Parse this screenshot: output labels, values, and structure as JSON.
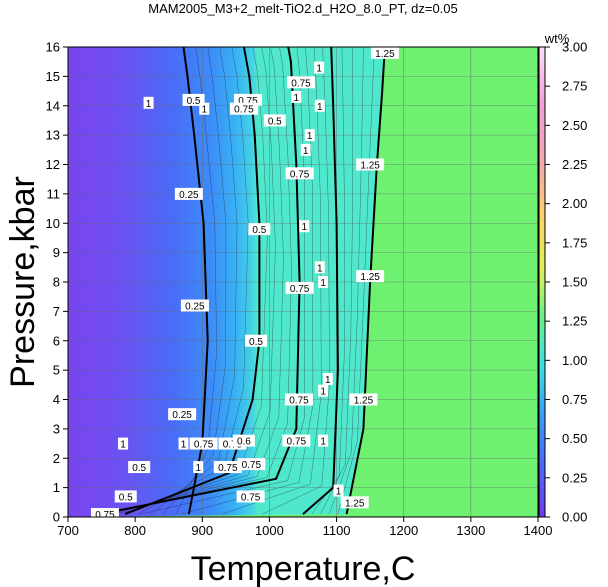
{
  "chart_data": {
    "type": "heatmap",
    "title": "MAM2005_M3+2_melt-TiO2.d_H2O_8.0_PT, dz=0.05",
    "xlabel": "Temperature,C",
    "ylabel": "Pressure,kbar",
    "xlim": [
      700,
      1400
    ],
    "ylim": [
      0,
      16
    ],
    "x_ticks": [
      "700",
      "800",
      "900",
      "1000",
      "1100",
      "1200",
      "1300",
      "1400"
    ],
    "y_ticks": [
      "0",
      "1",
      "2",
      "3",
      "4",
      "5",
      "6",
      "7",
      "8",
      "9",
      "10",
      "11",
      "12",
      "13",
      "14",
      "15",
      "16"
    ],
    "grid": true,
    "colorbar": {
      "label": "wt%",
      "range": [
        0,
        3
      ],
      "ticks": [
        "0.00",
        "0.25",
        "0.50",
        "0.75",
        "1.00",
        "1.25",
        "1.50",
        "1.75",
        "2.00",
        "2.25",
        "2.50",
        "2.75",
        "3.00"
      ],
      "colors": [
        "#6a3cf0",
        "#4a6cf6",
        "#3ca0f8",
        "#44e0dc",
        "#6ef080",
        "#d8f060",
        "#f8d860",
        "#f6a8a8",
        "#f2a0d8",
        "#f8e0f8"
      ]
    },
    "contours": [
      {
        "level": "0.25",
        "points": [
          [
            880,
            0.1
          ],
          [
            900,
            2.5
          ],
          [
            908,
            6
          ],
          [
            902,
            10
          ],
          [
            888,
            13
          ],
          [
            878,
            15
          ],
          [
            872,
            16
          ]
        ]
      },
      {
        "level": "0.5",
        "points": [
          [
            785,
            0.1
          ],
          [
            940,
            1.5
          ],
          [
            975,
            4
          ],
          [
            985,
            6
          ],
          [
            985,
            10
          ],
          [
            978,
            13
          ],
          [
            970,
            15
          ],
          [
            962,
            16
          ]
        ]
      },
      {
        "level": "0.75",
        "points": [
          [
            748,
            0.1
          ],
          [
            1010,
            1.3
          ],
          [
            1040,
            3
          ],
          [
            1045,
            8
          ],
          [
            1040,
            12
          ],
          [
            1032,
            15.5
          ],
          [
            1028,
            16
          ]
        ]
      },
      {
        "level": "1",
        "points": [
          [
            1050,
            0.1
          ],
          [
            1095,
            1
          ],
          [
            1102,
            5
          ],
          [
            1100,
            10
          ],
          [
            1095,
            14
          ],
          [
            1092,
            16
          ]
        ]
      },
      {
        "level": "1.25",
        "points": [
          [
            1115,
            0.1
          ],
          [
            1140,
            3
          ],
          [
            1150,
            8
          ],
          [
            1160,
            12
          ],
          [
            1168,
            14.5
          ],
          [
            1172,
            16
          ]
        ]
      }
    ],
    "label_marks": [
      {
        "text": "1",
        "x": 820,
        "y": 14.1
      },
      {
        "text": "0.5",
        "x": 887,
        "y": 14.2
      },
      {
        "text": "1",
        "x": 903,
        "y": 13.9
      },
      {
        "text": "0.75",
        "x": 968,
        "y": 14.2
      },
      {
        "text": "0.75",
        "x": 962,
        "y": 13.9
      },
      {
        "text": "1",
        "x": 1040,
        "y": 14.3
      },
      {
        "text": "1",
        "x": 1075,
        "y": 14.0
      },
      {
        "text": "0.75",
        "x": 1047,
        "y": 14.8
      },
      {
        "text": "1",
        "x": 1074,
        "y": 15.3
      },
      {
        "text": "1.25",
        "x": 1172,
        "y": 15.8
      },
      {
        "text": "1",
        "x": 1060,
        "y": 13.0
      },
      {
        "text": "1",
        "x": 1054,
        "y": 12.5
      },
      {
        "text": "1",
        "x": 1052,
        "y": 9.9
      },
      {
        "text": "1",
        "x": 1075,
        "y": 8.5
      },
      {
        "text": "1",
        "x": 1080,
        "y": 8.0
      },
      {
        "text": "1",
        "x": 1080,
        "y": 4.3
      },
      {
        "text": "1",
        "x": 1087,
        "y": 4.7
      },
      {
        "text": "1",
        "x": 1080,
        "y": 2.6
      },
      {
        "text": "0.75",
        "x": 1040,
        "y": 2.6
      },
      {
        "text": "0.75",
        "x": 973,
        "y": 1.8
      },
      {
        "text": "0.75",
        "x": 945,
        "y": 2.5
      },
      {
        "text": "0.6",
        "x": 962,
        "y": 2.6
      },
      {
        "text": "1",
        "x": 872,
        "y": 2.5
      },
      {
        "text": "0.75",
        "x": 902,
        "y": 2.5
      },
      {
        "text": "0.75",
        "x": 938,
        "y": 1.7
      },
      {
        "text": "0.5",
        "x": 806,
        "y": 1.7
      },
      {
        "text": "1",
        "x": 782,
        "y": 2.5
      },
      {
        "text": "1",
        "x": 894,
        "y": 1.7
      },
      {
        "text": "1",
        "x": 1103,
        "y": 0.9
      },
      {
        "text": "0.75",
        "x": 972,
        "y": 0.7
      },
      {
        "text": "0.5",
        "x": 786,
        "y": 0.7
      },
      {
        "text": "0.25",
        "x": 870,
        "y": 3.5
      },
      {
        "text": "1.25",
        "x": 1127,
        "y": 0.5
      },
      {
        "text": "0.75",
        "x": 755,
        "y": 0.1
      },
      {
        "text": "0.25",
        "x": 880,
        "y": 11.0
      },
      {
        "text": "0.5",
        "x": 985,
        "y": 9.8
      },
      {
        "text": "0.75",
        "x": 1045,
        "y": 11.7
      },
      {
        "text": "1.25",
        "x": 1150,
        "y": 12.0
      },
      {
        "text": "0.25",
        "x": 889,
        "y": 7.2
      },
      {
        "text": "0.5",
        "x": 980,
        "y": 6.0
      },
      {
        "text": "0.75",
        "x": 1045,
        "y": 7.8
      },
      {
        "text": "1.25",
        "x": 1150,
        "y": 8.2
      },
      {
        "text": "0.75",
        "x": 1044,
        "y": 4.0
      },
      {
        "text": "1.25",
        "x": 1140,
        "y": 4.0
      },
      {
        "text": "0.5",
        "x": 1008,
        "y": 13.5
      }
    ]
  }
}
